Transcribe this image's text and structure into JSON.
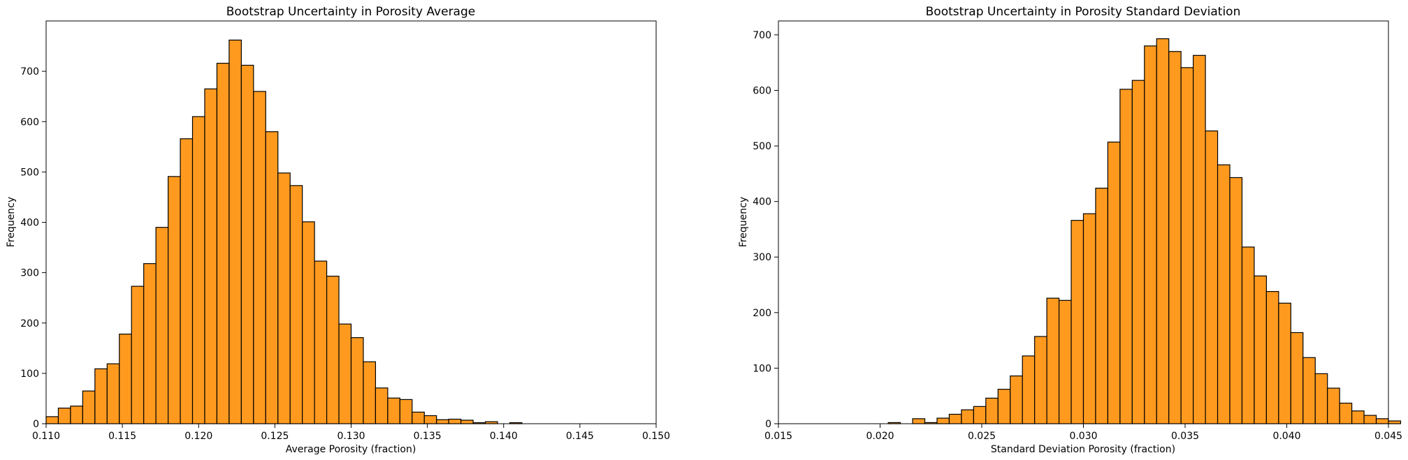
{
  "chart_data": [
    {
      "type": "histogram",
      "title": "Bootstrap Uncertainty in Porosity Average",
      "xlabel": "Average Porosity (fraction)",
      "ylabel": "Frequency",
      "xlim": [
        0.11,
        0.15
      ],
      "ylim": [
        0,
        800
      ],
      "xticks": [
        "0.110",
        "0.115",
        "0.120",
        "0.125",
        "0.130",
        "0.135",
        "0.140",
        "0.145",
        "0.150"
      ],
      "yticks": [
        "0",
        "100",
        "200",
        "300",
        "400",
        "500",
        "600",
        "700"
      ],
      "bin_width": 0.0008,
      "bin_start": 0.11,
      "values": [
        14,
        31,
        35,
        65,
        109,
        119,
        178,
        273,
        318,
        390,
        491,
        566,
        610,
        665,
        716,
        762,
        712,
        660,
        580,
        498,
        473,
        401,
        323,
        293,
        198,
        171,
        123,
        71,
        51,
        48,
        23,
        16,
        8,
        9,
        7,
        2,
        4,
        0,
        2
      ],
      "bar_color": "#ff9a1f",
      "edge_color": "#000000",
      "grid": false
    },
    {
      "type": "histogram",
      "title": "Bootstrap Uncertainty in Porosity Standard Deviation",
      "xlabel": "Standard Deviation Porosity (fraction)",
      "ylabel": "Frequency",
      "xlim": [
        0.015,
        0.045
      ],
      "ylim": [
        0,
        725
      ],
      "xticks": [
        "0.015",
        "0.020",
        "0.025",
        "0.030",
        "0.035",
        "0.040",
        "0.045"
      ],
      "yticks": [
        "0",
        "100",
        "200",
        "300",
        "400",
        "500",
        "600",
        "700"
      ],
      "bin_width": 0.0006,
      "bin_start": 0.0204,
      "values": [
        2,
        0,
        9,
        2,
        10,
        17,
        25,
        31,
        46,
        62,
        86,
        122,
        157,
        226,
        222,
        366,
        378,
        424,
        507,
        602,
        618,
        680,
        693,
        670,
        641,
        663,
        527,
        466,
        443,
        318,
        266,
        238,
        217,
        164,
        119,
        90,
        64,
        37,
        23,
        15,
        9,
        5
      ],
      "bar_color": "#ff9a1f",
      "edge_color": "#000000",
      "grid": false
    }
  ]
}
